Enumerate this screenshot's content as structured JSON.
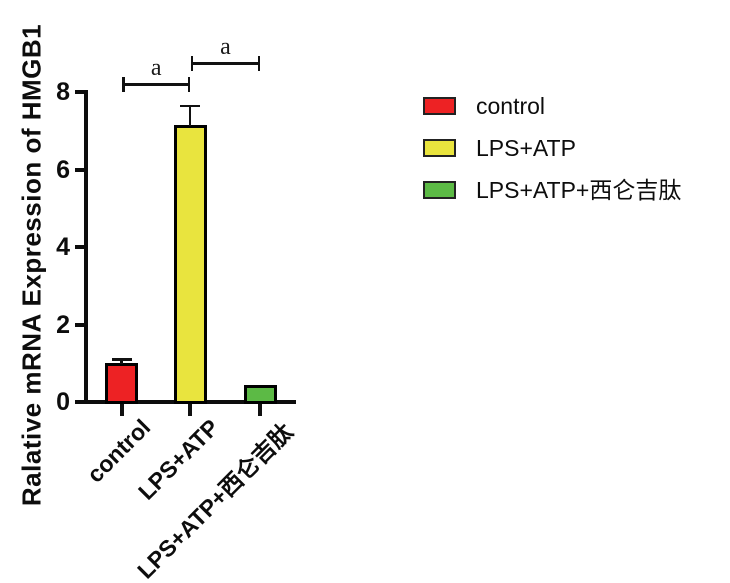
{
  "chart_data": {
    "type": "bar",
    "title": "",
    "ylabel": "Ralative mRNA Expression of HMGB1",
    "xlabel": "",
    "ylim": [
      0,
      8
    ],
    "yticks": [
      0,
      2,
      4,
      6,
      8
    ],
    "categories": [
      "control",
      "LPS+ATP",
      "LPS+ATP+西仑吉肽"
    ],
    "values": [
      1.0,
      7.15,
      0.45
    ],
    "errors": [
      0.1,
      0.5,
      0
    ],
    "bar_colors": [
      "#ed2224",
      "#e9e43e",
      "#5cba45"
    ],
    "bar_border_color": "#000000",
    "axis_color": "#0d0d0d",
    "grid": false,
    "annotations": [
      {
        "label": "a",
        "between": [
          "control",
          "LPS+ATP"
        ]
      },
      {
        "label": "a",
        "between": [
          "LPS+ATP",
          "LPS+ATP+西仑吉肽"
        ]
      }
    ],
    "legend": {
      "position": "right",
      "items": [
        {
          "label": "control",
          "color": "#ed2224"
        },
        {
          "label": "LPS+ATP",
          "color": "#e9e43e"
        },
        {
          "label": "LPS+ATP+西仑吉肽",
          "color": "#5cba45"
        }
      ]
    }
  }
}
